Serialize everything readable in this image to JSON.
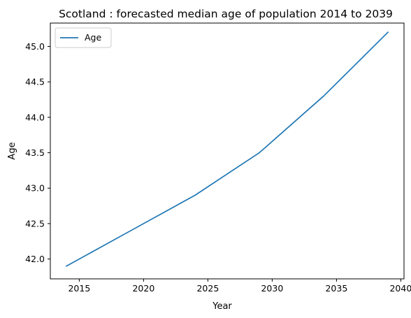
{
  "chart_data": {
    "type": "line",
    "title": "Scotland : forecasted median age of population 2014 to 2039",
    "xlabel": "Year",
    "ylabel": "Age",
    "xlim": [
      2012.75,
      2040.25
    ],
    "ylim": [
      41.72,
      45.33
    ],
    "xticks": [
      2015,
      2020,
      2025,
      2030,
      2035,
      2040
    ],
    "yticks": [
      42.0,
      42.5,
      43.0,
      43.5,
      44.0,
      44.5,
      45.0
    ],
    "grid": false,
    "legend_position": "top-left",
    "series": [
      {
        "name": "Age",
        "color": "#1f77b4",
        "x": [
          2014,
          2019,
          2024,
          2029,
          2034,
          2039
        ],
        "y": [
          41.9,
          42.4,
          42.9,
          43.5,
          44.3,
          45.2
        ]
      }
    ]
  }
}
